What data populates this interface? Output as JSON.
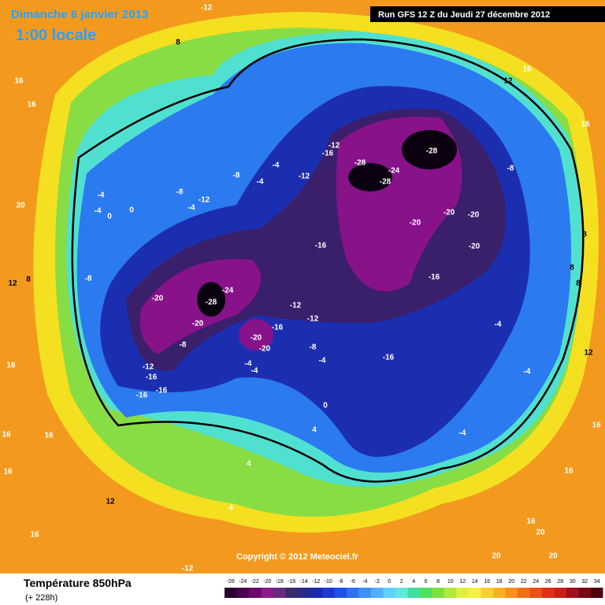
{
  "header": {
    "date": "Dimanche 6 janvier 2013",
    "time": "1:00 locale",
    "run": "Run GFS 12 Z du Jeudi 27 décembre 2012"
  },
  "copyright": "Copyright © 2012 Meteociel.fr",
  "footer": {
    "title": "Température 850hPa",
    "lead": "(+ 228h)"
  },
  "scale": {
    "ticks": [
      -26,
      -24,
      -22,
      -20,
      -18,
      -16,
      -14,
      -12,
      -10,
      -8,
      -6,
      -4,
      -2,
      0,
      2,
      4,
      6,
      8,
      10,
      12,
      14,
      16,
      18,
      20,
      22,
      24,
      26,
      28,
      30,
      32,
      34
    ],
    "colors": [
      "#2a0030",
      "#4a0050",
      "#6a0a6a",
      "#8a1a8a",
      "#6a2a7a",
      "#3a2a6a",
      "#2a2a8a",
      "#1a2aaa",
      "#1a3ad0",
      "#2050e8",
      "#3070f0",
      "#4090f8",
      "#50b0ff",
      "#60d0ff",
      "#60e8e0",
      "#40e0a0",
      "#50e060",
      "#80e040",
      "#b0e840",
      "#e0f040",
      "#f8f040",
      "#f8d030",
      "#f8b020",
      "#f89020",
      "#f07018",
      "#e85018",
      "#e03018",
      "#c82018",
      "#a01018",
      "#780810",
      "#500008"
    ]
  },
  "map": {
    "labels": [
      -12,
      8,
      16,
      16,
      20,
      12,
      8,
      16,
      16,
      16,
      16,
      12,
      16,
      -12,
      12,
      16,
      16,
      8,
      8,
      8,
      12,
      16,
      16,
      16,
      20,
      20,
      20,
      -28,
      -28,
      -24,
      -28,
      -12,
      -16,
      -12,
      -4,
      -4,
      -8,
      -8,
      -12,
      -4,
      -4,
      -4,
      0,
      0,
      -8,
      -20,
      -20,
      -20,
      -20,
      -16,
      -16,
      -8,
      -24,
      -28,
      -20,
      -20,
      -8,
      -12,
      -12,
      -16,
      -20,
      -20,
      -8,
      -4,
      -4,
      -4,
      -16,
      -12,
      -16,
      -16,
      -16,
      -4,
      -4,
      -4,
      0,
      4,
      4,
      4
    ]
  }
}
